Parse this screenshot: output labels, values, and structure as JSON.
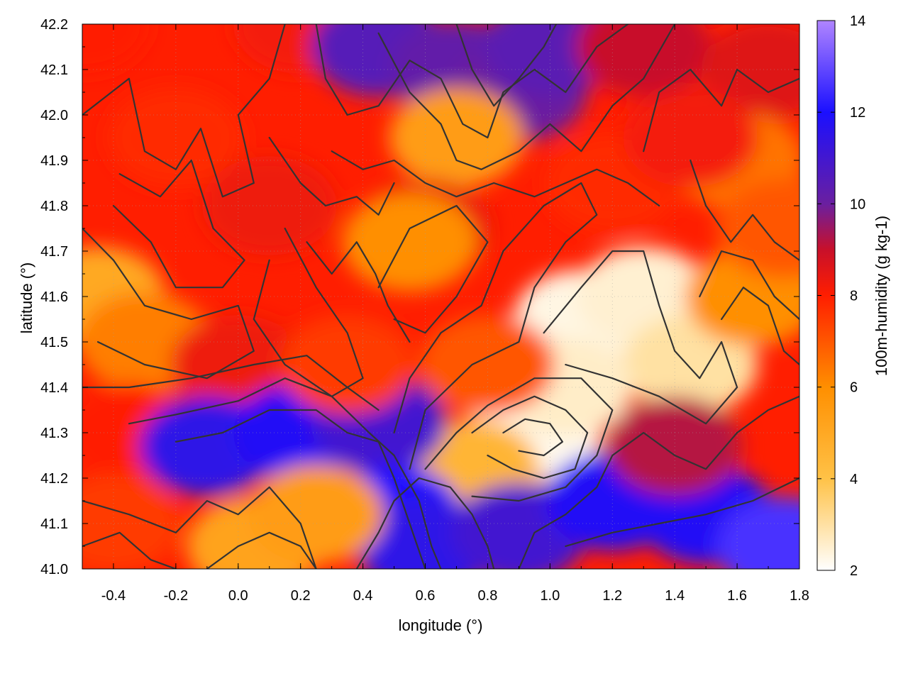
{
  "chart_data": {
    "type": "heatmap",
    "title": "",
    "xlabel": "longitude (°)",
    "ylabel": "latitude (°)",
    "colorbar_label": "100m-humidity (g kg-1)",
    "xlim": [
      -0.5,
      1.8
    ],
    "ylim": [
      41.0,
      42.2
    ],
    "clim": [
      2,
      14
    ],
    "x_ticks": [
      -0.4,
      -0.2,
      0.0,
      0.2,
      0.4,
      0.6,
      0.8,
      1.0,
      1.2,
      1.4,
      1.6,
      1.8
    ],
    "x_tick_labels": [
      "-0.4",
      "-0.2",
      "0.0",
      "0.2",
      "0.4",
      "0.6",
      "0.8",
      "1.0",
      "1.2",
      "1.4",
      "1.6",
      "1.8"
    ],
    "y_ticks": [
      41.0,
      41.1,
      41.2,
      41.3,
      41.4,
      41.5,
      41.6,
      41.7,
      41.8,
      41.9,
      42.0,
      42.1,
      42.2
    ],
    "y_tick_labels": [
      "41.0",
      "41.1",
      "41.2",
      "41.3",
      "41.4",
      "41.5",
      "41.6",
      "41.7",
      "41.8",
      "41.9",
      "42.0",
      "42.1",
      "42.2"
    ],
    "colorbar_ticks": [
      2,
      4,
      6,
      8,
      10,
      12,
      14
    ],
    "colorbar_tick_labels": [
      "2",
      "4",
      "6",
      "8",
      "10",
      "12",
      "14"
    ],
    "colormap": [
      {
        "value": 2,
        "color": "#ffffff"
      },
      {
        "value": 4,
        "color": "#ffc247"
      },
      {
        "value": 6,
        "color": "#ff8f00"
      },
      {
        "value": 8,
        "color": "#ff1e00"
      },
      {
        "value": 9,
        "color": "#c8102a"
      },
      {
        "value": 10,
        "color": "#6a1fa0"
      },
      {
        "value": 12,
        "color": "#1b10ff"
      },
      {
        "value": 14,
        "color": "#b085ff"
      }
    ],
    "grid": true,
    "contour_color": "#333333",
    "field_regions": [
      {
        "lon": -0.5,
        "lat": 42.2,
        "value": 8.0
      },
      {
        "lon": 0.2,
        "lat": 42.2,
        "value": 8.2
      },
      {
        "lon": 0.45,
        "lat": 42.15,
        "value": 10.5
      },
      {
        "lon": 0.7,
        "lat": 42.1,
        "value": 10.2
      },
      {
        "lon": 0.9,
        "lat": 42.05,
        "value": 10.0
      },
      {
        "lon": 1.0,
        "lat": 42.15,
        "value": 10.4
      },
      {
        "lon": 1.3,
        "lat": 42.15,
        "value": 9.0
      },
      {
        "lon": 1.7,
        "lat": 42.1,
        "value": 8.6
      },
      {
        "lon": 1.6,
        "lat": 41.9,
        "value": 6.5
      },
      {
        "lon": 0.7,
        "lat": 41.95,
        "value": 5.5
      },
      {
        "lon": -0.2,
        "lat": 41.95,
        "value": 7.8
      },
      {
        "lon": 0.1,
        "lat": 41.8,
        "value": 8.3
      },
      {
        "lon": 0.6,
        "lat": 41.75,
        "value": 8.4
      },
      {
        "lon": 0.55,
        "lat": 41.72,
        "value": 6.0
      },
      {
        "lon": 1.1,
        "lat": 41.55,
        "value": 2.3
      },
      {
        "lon": 1.3,
        "lat": 41.6,
        "value": 2.5
      },
      {
        "lon": 1.45,
        "lat": 41.45,
        "value": 3.0
      },
      {
        "lon": 0.95,
        "lat": 41.3,
        "value": 2.2
      },
      {
        "lon": 1.05,
        "lat": 41.4,
        "value": 2.6
      },
      {
        "lon": 0.75,
        "lat": 41.22,
        "value": 4.5
      },
      {
        "lon": 1.65,
        "lat": 41.6,
        "value": 6.0
      },
      {
        "lon": 1.75,
        "lat": 41.75,
        "value": 7.0
      },
      {
        "lon": -0.45,
        "lat": 41.6,
        "value": 5.0
      },
      {
        "lon": -0.3,
        "lat": 41.5,
        "value": 6.3
      },
      {
        "lon": 0.0,
        "lat": 41.45,
        "value": 8.3
      },
      {
        "lon": -0.35,
        "lat": 41.3,
        "value": 8.0
      },
      {
        "lon": -0.1,
        "lat": 41.27,
        "value": 11.5
      },
      {
        "lon": 0.2,
        "lat": 41.3,
        "value": 11.8
      },
      {
        "lon": 0.45,
        "lat": 41.32,
        "value": 11.0
      },
      {
        "lon": 0.5,
        "lat": 41.12,
        "value": 12.0
      },
      {
        "lon": 0.6,
        "lat": 41.05,
        "value": 11.5
      },
      {
        "lon": 0.9,
        "lat": 41.08,
        "value": 11.0
      },
      {
        "lon": 1.2,
        "lat": 41.15,
        "value": 11.8
      },
      {
        "lon": 1.5,
        "lat": 41.12,
        "value": 11.8
      },
      {
        "lon": 1.75,
        "lat": 41.05,
        "value": 12.6
      },
      {
        "lon": 1.4,
        "lat": 41.27,
        "value": 9.2
      },
      {
        "lon": -0.4,
        "lat": 41.1,
        "value": 7.5
      },
      {
        "lon": 0.05,
        "lat": 41.05,
        "value": 5.2
      },
      {
        "lon": 0.25,
        "lat": 41.12,
        "value": 5.5
      },
      {
        "lon": 0.35,
        "lat": 41.45,
        "value": 7.5
      },
      {
        "lon": 0.8,
        "lat": 41.45,
        "value": 7.0
      },
      {
        "lon": 1.2,
        "lat": 41.85,
        "value": 7.8
      },
      {
        "lon": 1.45,
        "lat": 41.95,
        "value": 8.2
      }
    ],
    "contours": [
      [
        [
          -0.5,
          42.0
        ],
        [
          -0.35,
          42.08
        ],
        [
          -0.3,
          41.92
        ],
        [
          -0.2,
          41.88
        ],
        [
          -0.12,
          41.97
        ],
        [
          -0.05,
          41.82
        ],
        [
          0.05,
          41.85
        ],
        [
          0.0,
          42.0
        ],
        [
          0.1,
          42.08
        ],
        [
          0.15,
          42.2
        ]
      ],
      [
        [
          -0.38,
          41.87
        ],
        [
          -0.25,
          41.82
        ],
        [
          -0.15,
          41.9
        ],
        [
          -0.08,
          41.75
        ],
        [
          0.02,
          41.68
        ],
        [
          -0.05,
          41.62
        ],
        [
          -0.2,
          41.62
        ],
        [
          -0.28,
          41.72
        ],
        [
          -0.4,
          41.8
        ]
      ],
      [
        [
          -0.5,
          41.75
        ],
        [
          -0.4,
          41.68
        ],
        [
          -0.3,
          41.58
        ],
        [
          -0.15,
          41.55
        ],
        [
          0.0,
          41.58
        ],
        [
          0.05,
          41.48
        ],
        [
          -0.1,
          41.42
        ],
        [
          -0.3,
          41.45
        ],
        [
          -0.45,
          41.5
        ]
      ],
      [
        [
          0.15,
          41.75
        ],
        [
          0.25,
          41.62
        ],
        [
          0.35,
          41.52
        ],
        [
          0.4,
          41.42
        ],
        [
          0.3,
          41.38
        ],
        [
          0.15,
          41.45
        ],
        [
          0.05,
          41.55
        ],
        [
          0.1,
          41.68
        ]
      ],
      [
        [
          0.45,
          41.62
        ],
        [
          0.55,
          41.75
        ],
        [
          0.7,
          41.8
        ],
        [
          0.8,
          41.72
        ],
        [
          0.7,
          41.6
        ],
        [
          0.6,
          41.52
        ],
        [
          0.5,
          41.55
        ]
      ],
      [
        [
          0.98,
          41.52
        ],
        [
          1.1,
          41.62
        ],
        [
          1.2,
          41.7
        ],
        [
          1.3,
          41.7
        ],
        [
          1.35,
          41.58
        ],
        [
          1.4,
          41.48
        ],
        [
          1.48,
          41.42
        ],
        [
          1.55,
          41.5
        ],
        [
          1.6,
          41.4
        ],
        [
          1.5,
          41.32
        ],
        [
          1.35,
          41.38
        ],
        [
          1.2,
          41.42
        ],
        [
          1.05,
          41.45
        ]
      ],
      [
        [
          0.75,
          41.3
        ],
        [
          0.85,
          41.35
        ],
        [
          0.95,
          41.38
        ],
        [
          1.05,
          41.35
        ],
        [
          1.12,
          41.3
        ],
        [
          1.08,
          41.22
        ],
        [
          0.98,
          41.2
        ],
        [
          0.88,
          41.22
        ],
        [
          0.8,
          41.25
        ]
      ],
      [
        [
          0.85,
          41.3
        ],
        [
          0.92,
          41.33
        ],
        [
          1.0,
          41.32
        ],
        [
          1.04,
          41.28
        ],
        [
          0.98,
          41.25
        ],
        [
          0.9,
          41.26
        ]
      ],
      [
        [
          0.6,
          41.22
        ],
        [
          0.7,
          41.3
        ],
        [
          0.8,
          41.36
        ],
        [
          0.95,
          41.42
        ],
        [
          1.1,
          41.42
        ],
        [
          1.2,
          41.35
        ],
        [
          1.15,
          41.25
        ],
        [
          1.05,
          41.18
        ],
        [
          0.9,
          41.15
        ],
        [
          0.75,
          41.16
        ]
      ],
      [
        [
          0.55,
          41.22
        ],
        [
          0.6,
          41.35
        ],
        [
          0.75,
          41.45
        ],
        [
          0.9,
          41.5
        ],
        [
          0.95,
          41.62
        ],
        [
          1.05,
          41.72
        ],
        [
          1.15,
          41.78
        ],
        [
          1.1,
          41.85
        ],
        [
          0.98,
          41.8
        ],
        [
          0.85,
          41.7
        ],
        [
          0.78,
          41.58
        ],
        [
          0.65,
          41.52
        ],
        [
          0.55,
          41.42
        ],
        [
          0.5,
          41.3
        ]
      ],
      [
        [
          -0.2,
          41.28
        ],
        [
          -0.05,
          41.3
        ],
        [
          0.1,
          41.35
        ],
        [
          0.25,
          41.35
        ],
        [
          0.35,
          41.3
        ],
        [
          0.45,
          41.28
        ],
        [
          0.5,
          41.2
        ],
        [
          0.55,
          41.1
        ],
        [
          0.6,
          41.0
        ]
      ],
      [
        [
          -0.35,
          41.32
        ],
        [
          -0.2,
          41.34
        ],
        [
          0.0,
          41.37
        ],
        [
          0.15,
          41.42
        ],
        [
          0.3,
          41.38
        ],
        [
          0.42,
          41.3
        ],
        [
          0.5,
          41.25
        ],
        [
          0.58,
          41.15
        ],
        [
          0.62,
          41.05
        ],
        [
          0.65,
          41.0
        ]
      ],
      [
        [
          -0.5,
          41.4
        ],
        [
          -0.35,
          41.4
        ],
        [
          -0.15,
          41.42
        ],
        [
          0.05,
          41.45
        ],
        [
          0.22,
          41.47
        ],
        [
          0.35,
          41.4
        ],
        [
          0.45,
          41.35
        ]
      ],
      [
        [
          0.38,
          41.0
        ],
        [
          0.45,
          41.08
        ],
        [
          0.5,
          41.15
        ],
        [
          0.58,
          41.2
        ],
        [
          0.68,
          41.18
        ],
        [
          0.75,
          41.12
        ],
        [
          0.8,
          41.05
        ],
        [
          0.82,
          41.0
        ]
      ],
      [
        [
          0.9,
          41.0
        ],
        [
          0.95,
          41.08
        ],
        [
          1.05,
          41.12
        ],
        [
          1.15,
          41.18
        ],
        [
          1.2,
          41.25
        ],
        [
          1.3,
          41.3
        ],
        [
          1.4,
          41.25
        ],
        [
          1.5,
          41.22
        ],
        [
          1.6,
          41.3
        ],
        [
          1.7,
          41.35
        ],
        [
          1.8,
          41.38
        ]
      ],
      [
        [
          1.05,
          41.05
        ],
        [
          1.2,
          41.08
        ],
        [
          1.35,
          41.1
        ],
        [
          1.5,
          41.12
        ],
        [
          1.65,
          41.15
        ],
        [
          1.8,
          41.2
        ]
      ],
      [
        [
          -0.5,
          41.15
        ],
        [
          -0.35,
          41.12
        ],
        [
          -0.2,
          41.08
        ],
        [
          -0.1,
          41.15
        ],
        [
          0.0,
          41.12
        ],
        [
          0.1,
          41.18
        ],
        [
          0.2,
          41.1
        ],
        [
          0.25,
          41.0
        ]
      ],
      [
        [
          -0.5,
          41.05
        ],
        [
          -0.38,
          41.08
        ],
        [
          -0.28,
          41.02
        ],
        [
          -0.2,
          41.0
        ]
      ],
      [
        [
          -0.1,
          41.0
        ],
        [
          0.0,
          41.05
        ],
        [
          0.1,
          41.08
        ],
        [
          0.2,
          41.05
        ],
        [
          0.25,
          41.0
        ]
      ],
      [
        [
          0.25,
          42.2
        ],
        [
          0.28,
          42.08
        ],
        [
          0.35,
          42.0
        ],
        [
          0.45,
          42.02
        ],
        [
          0.55,
          42.12
        ],
        [
          0.65,
          42.08
        ],
        [
          0.72,
          41.98
        ],
        [
          0.8,
          41.95
        ],
        [
          0.85,
          42.05
        ],
        [
          0.95,
          42.1
        ],
        [
          1.05,
          42.05
        ],
        [
          1.15,
          42.15
        ],
        [
          1.25,
          42.2
        ]
      ],
      [
        [
          0.45,
          42.18
        ],
        [
          0.55,
          42.05
        ],
        [
          0.65,
          41.98
        ],
        [
          0.7,
          41.9
        ],
        [
          0.78,
          41.88
        ],
        [
          0.9,
          41.92
        ],
        [
          1.0,
          41.98
        ],
        [
          1.1,
          41.92
        ],
        [
          1.2,
          42.02
        ],
        [
          1.3,
          42.08
        ],
        [
          1.4,
          42.2
        ]
      ],
      [
        [
          0.7,
          42.2
        ],
        [
          0.75,
          42.1
        ],
        [
          0.82,
          42.02
        ],
        [
          0.9,
          42.08
        ],
        [
          0.98,
          42.15
        ],
        [
          1.02,
          42.2
        ]
      ],
      [
        [
          1.3,
          41.92
        ],
        [
          1.35,
          42.05
        ],
        [
          1.45,
          42.1
        ],
        [
          1.55,
          42.02
        ],
        [
          1.6,
          42.1
        ],
        [
          1.7,
          42.05
        ],
        [
          1.8,
          42.08
        ]
      ],
      [
        [
          1.45,
          41.9
        ],
        [
          1.5,
          41.8
        ],
        [
          1.58,
          41.72
        ],
        [
          1.65,
          41.78
        ],
        [
          1.72,
          41.72
        ],
        [
          1.8,
          41.68
        ]
      ],
      [
        [
          1.48,
          41.6
        ],
        [
          1.55,
          41.7
        ],
        [
          1.65,
          41.68
        ],
        [
          1.72,
          41.6
        ],
        [
          1.8,
          41.55
        ]
      ],
      [
        [
          1.55,
          41.55
        ],
        [
          1.62,
          41.62
        ],
        [
          1.7,
          41.58
        ],
        [
          1.75,
          41.48
        ],
        [
          1.8,
          41.45
        ]
      ],
      [
        [
          0.3,
          41.92
        ],
        [
          0.4,
          41.88
        ],
        [
          0.5,
          41.9
        ],
        [
          0.6,
          41.85
        ],
        [
          0.7,
          41.82
        ],
        [
          0.82,
          41.85
        ],
        [
          0.95,
          41.82
        ],
        [
          1.05,
          41.85
        ],
        [
          1.15,
          41.88
        ],
        [
          1.25,
          41.85
        ],
        [
          1.35,
          41.8
        ]
      ],
      [
        [
          0.1,
          41.95
        ],
        [
          0.2,
          41.85
        ],
        [
          0.28,
          41.8
        ],
        [
          0.38,
          41.82
        ],
        [
          0.45,
          41.78
        ],
        [
          0.5,
          41.85
        ]
      ],
      [
        [
          0.22,
          41.72
        ],
        [
          0.3,
          41.65
        ],
        [
          0.38,
          41.72
        ],
        [
          0.44,
          41.65
        ],
        [
          0.48,
          41.58
        ],
        [
          0.55,
          41.5
        ]
      ]
    ]
  }
}
